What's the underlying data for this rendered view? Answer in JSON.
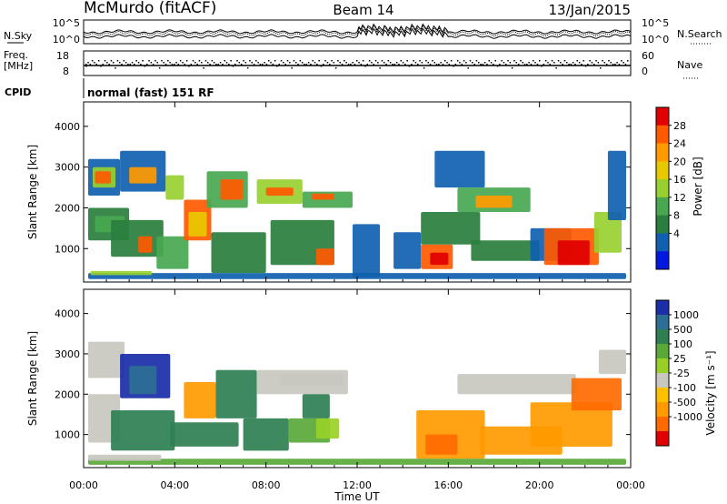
{
  "header": {
    "station": "McMurdo (fitACF)",
    "beam": "Beam 14",
    "date": "13/Jan/2015"
  },
  "noise_panel": {
    "left_label": "N.Sky",
    "right_label": "N.Search",
    "left_ticks": [
      "10^5",
      "10^0"
    ],
    "right_ticks": [
      "10^5",
      "10^0"
    ]
  },
  "freq_panel": {
    "left_label_1": "Freq.",
    "left_label_2": "[MHz]",
    "left_ticks": [
      "18",
      "8"
    ],
    "right_label": "Nave",
    "right_ticks": [
      "60",
      "0"
    ]
  },
  "cpid": {
    "label": "CPID",
    "value": "normal (fast) 151 RF"
  },
  "chart_data": [
    {
      "type": "heatmap",
      "name": "Power",
      "ylabel": "Slant Range [km]",
      "xlabel": "",
      "yticks": [
        1000,
        2000,
        3000,
        4000
      ],
      "ylim": [
        180,
        4600
      ],
      "xlim_hours": [
        0,
        24
      ],
      "colorbar_label": "Power [dB]",
      "colorbar_ticks": [
        "28",
        "24",
        "20",
        "16",
        "12",
        "8",
        "4"
      ],
      "colorbar_colors": [
        "#e00000",
        "#ff5a00",
        "#ff9a00",
        "#e8c800",
        "#98d030",
        "#48a850",
        "#2a7e3e",
        "#1060b0",
        "#0018e0"
      ]
    },
    {
      "type": "heatmap",
      "name": "Velocity",
      "ylabel": "Slant Range [km]",
      "xlabel": "Time UT",
      "yticks": [
        1000,
        2000,
        3000,
        4000
      ],
      "ylim": [
        180,
        4600
      ],
      "xticks": [
        "00:00",
        "04:00",
        "08:00",
        "12:00",
        "16:00",
        "20:00",
        "00:00"
      ],
      "colorbar_label": "Velocity [m s⁻¹]",
      "colorbar_ticks": [
        "1000",
        "500",
        "100",
        "25",
        "-25",
        "-100",
        "-500",
        "-1000"
      ],
      "colorbar_colors": [
        "#1a2ea8",
        "#2c6e95",
        "#2f7f52",
        "#5aa838",
        "#98d028",
        "#c8c8c0",
        "#ffc000",
        "#ff9a00",
        "#ff6a00",
        "#e00000"
      ]
    }
  ]
}
